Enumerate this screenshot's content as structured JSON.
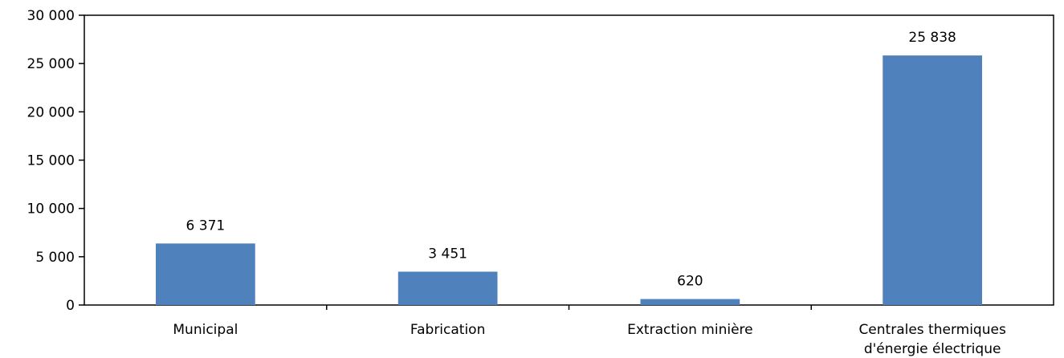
{
  "chart_data": {
    "type": "bar",
    "categories": [
      [
        "Municipal"
      ],
      [
        "Fabrication"
      ],
      [
        "Extraction minière"
      ],
      [
        "Centrales thermiques",
        "d'énergie électrique"
      ]
    ],
    "values": [
      6371,
      3451,
      620,
      25838
    ],
    "data_labels": [
      "6 371",
      "3 451",
      "620",
      "25 838"
    ],
    "ylim": [
      0,
      30000
    ],
    "yticks": [
      0,
      5000,
      10000,
      15000,
      20000,
      25000,
      30000
    ],
    "ytick_labels": [
      "0",
      "5 000",
      "10 000",
      "15 000",
      "20 000",
      "25 000",
      "30 000"
    ],
    "bar_color": "#4f81bd",
    "grid": false,
    "legend": "none"
  }
}
